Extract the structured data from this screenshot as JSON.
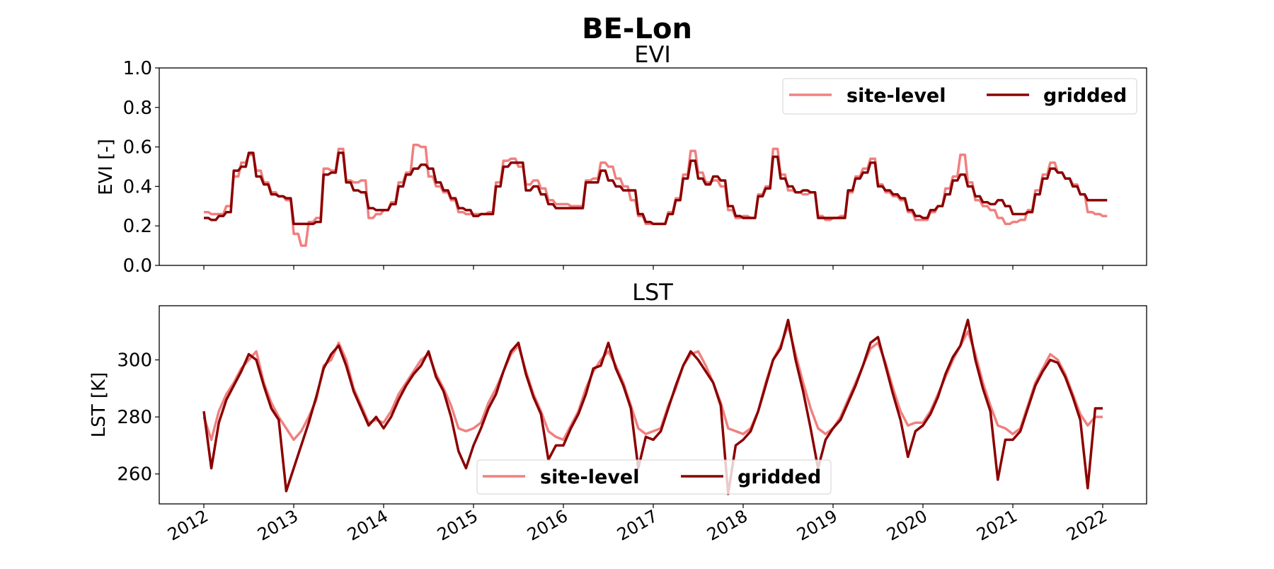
{
  "figure_title": "BE-Lon",
  "colors": {
    "site-level": "#f08080",
    "gridded": "#8b0000"
  },
  "chart_data": [
    {
      "type": "line",
      "title": "EVI",
      "xlabel": "",
      "ylabel": "EVI [-]",
      "ylim": [
        0.0,
        1.0
      ],
      "yticks": [
        "0.0",
        "0.2",
        "0.4",
        "0.6",
        "0.8",
        "1.0"
      ],
      "xlim": [
        "2011-07",
        "2022-06"
      ],
      "xticks": [
        "2012",
        "2013",
        "2014",
        "2015",
        "2016",
        "2017",
        "2018",
        "2019",
        "2020",
        "2021",
        "2022"
      ],
      "show_xticklabels": false,
      "grid": false,
      "legend": {
        "placement": "upper-right",
        "columns": 2,
        "entries": [
          "site-level",
          "gridded"
        ]
      },
      "x_start": "2012-01",
      "x_step": "monthly",
      "series": [
        {
          "name": "site-level",
          "values": [
            0.27,
            0.26,
            0.26,
            0.3,
            0.45,
            0.52,
            0.56,
            0.48,
            0.42,
            0.37,
            0.35,
            0.33,
            0.16,
            0.1,
            0.22,
            0.24,
            0.49,
            0.48,
            0.59,
            0.43,
            0.42,
            0.43,
            0.24,
            0.26,
            0.28,
            0.32,
            0.42,
            0.47,
            0.61,
            0.6,
            0.45,
            0.4,
            0.37,
            0.33,
            0.27,
            0.26,
            0.26,
            0.26,
            0.27,
            0.42,
            0.53,
            0.54,
            0.5,
            0.41,
            0.43,
            0.39,
            0.33,
            0.31,
            0.31,
            0.3,
            0.3,
            0.43,
            0.44,
            0.52,
            0.5,
            0.44,
            0.4,
            0.33,
            0.25,
            0.21,
            0.21,
            0.21,
            0.27,
            0.34,
            0.46,
            0.58,
            0.47,
            0.42,
            0.43,
            0.4,
            0.28,
            0.24,
            0.25,
            0.24,
            0.36,
            0.4,
            0.59,
            0.46,
            0.38,
            0.37,
            0.36,
            0.37,
            0.25,
            0.23,
            0.24,
            0.25,
            0.37,
            0.45,
            0.49,
            0.54,
            0.41,
            0.37,
            0.35,
            0.33,
            0.27,
            0.23,
            0.23,
            0.27,
            0.3,
            0.39,
            0.45,
            0.56,
            0.42,
            0.33,
            0.3,
            0.28,
            0.24,
            0.21,
            0.22,
            0.23,
            0.28,
            0.38,
            0.46,
            0.52,
            0.47,
            0.44,
            0.41,
            0.36,
            0.27,
            0.26,
            0.25
          ]
        },
        {
          "name": "gridded",
          "values": [
            0.24,
            0.23,
            0.25,
            0.27,
            0.48,
            0.5,
            0.57,
            0.45,
            0.41,
            0.36,
            0.35,
            0.34,
            0.21,
            0.21,
            0.21,
            0.22,
            0.46,
            0.47,
            0.57,
            0.42,
            0.38,
            0.37,
            0.29,
            0.28,
            0.28,
            0.31,
            0.4,
            0.46,
            0.49,
            0.51,
            0.49,
            0.42,
            0.38,
            0.34,
            0.29,
            0.28,
            0.25,
            0.26,
            0.26,
            0.4,
            0.5,
            0.52,
            0.52,
            0.38,
            0.4,
            0.36,
            0.31,
            0.29,
            0.29,
            0.29,
            0.29,
            0.42,
            0.42,
            0.48,
            0.43,
            0.4,
            0.38,
            0.38,
            0.26,
            0.22,
            0.21,
            0.21,
            0.26,
            0.33,
            0.44,
            0.53,
            0.44,
            0.41,
            0.45,
            0.43,
            0.3,
            0.25,
            0.24,
            0.24,
            0.35,
            0.39,
            0.55,
            0.44,
            0.4,
            0.37,
            0.38,
            0.37,
            0.24,
            0.24,
            0.24,
            0.24,
            0.38,
            0.44,
            0.47,
            0.52,
            0.4,
            0.38,
            0.36,
            0.34,
            0.28,
            0.25,
            0.24,
            0.28,
            0.3,
            0.36,
            0.43,
            0.46,
            0.4,
            0.35,
            0.32,
            0.31,
            0.33,
            0.3,
            0.26,
            0.26,
            0.27,
            0.36,
            0.44,
            0.49,
            0.47,
            0.44,
            0.4,
            0.36,
            0.33,
            0.33,
            0.33
          ]
        }
      ]
    },
    {
      "type": "line",
      "title": "LST",
      "xlabel": "",
      "ylabel": "LST [K]",
      "ylim": [
        249.5,
        319
      ],
      "yticks": [
        "260",
        "280",
        "300"
      ],
      "xlim": [
        "2011-07",
        "2022-06"
      ],
      "xticks": [
        "2012",
        "2013",
        "2014",
        "2015",
        "2016",
        "2017",
        "2018",
        "2019",
        "2020",
        "2021",
        "2022"
      ],
      "show_xticklabels": true,
      "grid": false,
      "legend": {
        "placement": "lower-center",
        "columns": 2,
        "entries": [
          "site-level",
          "gridded"
        ]
      },
      "x_start": "2012-01",
      "x_step": "monthly",
      "series": [
        {
          "name": "site-level",
          "values": [
            280,
            272,
            282,
            288,
            292,
            297,
            300,
            303,
            292,
            285,
            280,
            276,
            272,
            275,
            280,
            286,
            298,
            300,
            306,
            300,
            290,
            284,
            278,
            279,
            278,
            282,
            288,
            292,
            296,
            300,
            302,
            295,
            290,
            284,
            276,
            275,
            276,
            278,
            285,
            290,
            296,
            302,
            305,
            296,
            288,
            282,
            275,
            273,
            272,
            277,
            282,
            290,
            296,
            300,
            303,
            298,
            292,
            284,
            276,
            274,
            275,
            276,
            284,
            290,
            298,
            302,
            303,
            298,
            292,
            285,
            276,
            275,
            274,
            276,
            282,
            292,
            300,
            305,
            312,
            302,
            292,
            283,
            276,
            274,
            276,
            280,
            286,
            292,
            298,
            304,
            306,
            299,
            290,
            282,
            277,
            278,
            278,
            282,
            288,
            294,
            300,
            305,
            310,
            302,
            292,
            284,
            277,
            276,
            274,
            276,
            284,
            292,
            297,
            302,
            300,
            295,
            288,
            281,
            277,
            280,
            280
          ]
        },
        {
          "name": "gridded",
          "values": [
            282,
            262,
            278,
            286,
            291,
            296,
            302,
            300,
            291,
            283,
            279,
            254,
            262,
            270,
            278,
            287,
            297,
            302,
            305,
            298,
            289,
            283,
            277,
            280,
            276,
            280,
            286,
            291,
            295,
            298,
            303,
            294,
            289,
            280,
            268,
            262,
            270,
            276,
            283,
            288,
            296,
            303,
            306,
            295,
            287,
            281,
            265,
            270,
            270,
            276,
            281,
            288,
            297,
            298,
            306,
            297,
            291,
            283,
            262,
            273,
            272,
            275,
            283,
            291,
            298,
            303,
            300,
            296,
            292,
            284,
            253,
            270,
            272,
            275,
            282,
            291,
            300,
            304,
            314,
            300,
            289,
            276,
            262,
            272,
            276,
            279,
            285,
            291,
            298,
            306,
            308,
            298,
            288,
            279,
            266,
            275,
            277,
            281,
            287,
            295,
            301,
            305,
            314,
            300,
            290,
            282,
            258,
            272,
            272,
            275,
            283,
            291,
            296,
            300,
            299,
            294,
            287,
            279,
            255,
            283,
            283
          ]
        }
      ]
    }
  ]
}
